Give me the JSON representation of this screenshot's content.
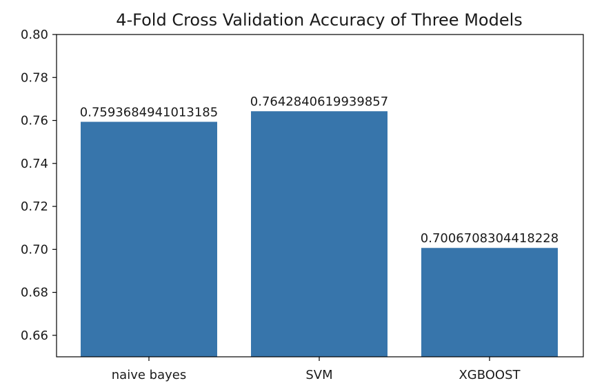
{
  "chart_data": {
    "type": "bar",
    "title": "4-Fold Cross Validation Accuracy of Three Models",
    "xlabel": "",
    "ylabel": "",
    "categories": [
      "naive bayes",
      "SVM",
      "XGBOOST"
    ],
    "values": [
      0.7593684941013185,
      0.7642840619939857,
      0.7006708304418228
    ],
    "value_labels": [
      "0.7593684941013185",
      "0.7642840619939857",
      "0.7006708304418228"
    ],
    "ylim": [
      0.65,
      0.8
    ],
    "yticks": [
      0.66,
      0.68,
      0.7,
      0.72,
      0.74,
      0.76,
      0.78,
      0.8
    ],
    "ytick_labels": [
      "0.66",
      "0.68",
      "0.70",
      "0.72",
      "0.74",
      "0.76",
      "0.78",
      "0.80"
    ],
    "grid": false,
    "bar_color": "#3775ab"
  }
}
